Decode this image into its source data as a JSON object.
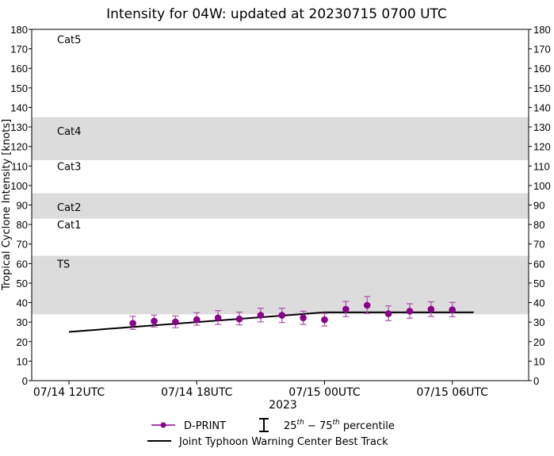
{
  "chart_data": {
    "type": "line",
    "title": "Intensity for 04W: updated at 20230715 0700 UTC",
    "xlabel": "2023",
    "ylabel": "Tropical Cyclone Intensity [knots]",
    "ylim": [
      0,
      180
    ],
    "xlim": [
      "2023-07-14T10:15",
      "2023-07-15T09:35"
    ],
    "yticks": [
      0,
      10,
      20,
      30,
      40,
      50,
      60,
      70,
      80,
      90,
      100,
      110,
      120,
      130,
      140,
      150,
      160,
      170,
      180
    ],
    "xticks": [
      {
        "t": "2023-07-14T12:00",
        "label": "07/14 12UTC"
      },
      {
        "t": "2023-07-14T18:00",
        "label": "07/14 18UTC"
      },
      {
        "t": "2023-07-15T00:00",
        "label": "07/15 00UTC"
      },
      {
        "t": "2023-07-15T06:00",
        "label": "07/15 06UTC"
      }
    ],
    "grid": false,
    "bands": [
      {
        "label": "TS",
        "from": 34,
        "to": 64,
        "shaded": true,
        "label_y": 60
      },
      {
        "label": "Cat1",
        "from": 64,
        "to": 83,
        "shaded": false,
        "label_y": 80
      },
      {
        "label": "Cat2",
        "from": 83,
        "to": 96,
        "shaded": true,
        "label_y": 89
      },
      {
        "label": "Cat3",
        "from": 96,
        "to": 113,
        "shaded": false,
        "label_y": 110
      },
      {
        "label": "Cat4",
        "from": 113,
        "to": 135,
        "shaded": true,
        "label_y": 128
      },
      {
        "label": "Cat5",
        "from": 135,
        "to": 180,
        "shaded": false,
        "label_y": 175
      }
    ],
    "band_color": "#dcdcdc",
    "series": [
      {
        "name": "D-PRINT",
        "color": "#8b008b",
        "points": [
          {
            "t": "2023-07-14T15:00",
            "y": 29.4,
            "p25": 26.3,
            "p75": 33.0
          },
          {
            "t": "2023-07-14T16:00",
            "y": 30.5,
            "p25": 27.5,
            "p75": 33.6
          },
          {
            "t": "2023-07-14T17:00",
            "y": 30.1,
            "p25": 27.1,
            "p75": 33.2
          },
          {
            "t": "2023-07-14T18:00",
            "y": 31.2,
            "p25": 28.4,
            "p75": 34.8
          },
          {
            "t": "2023-07-14T19:00",
            "y": 32.2,
            "p25": 28.8,
            "p75": 35.9
          },
          {
            "t": "2023-07-14T20:00",
            "y": 31.6,
            "p25": 28.6,
            "p75": 35.1
          },
          {
            "t": "2023-07-14T21:00",
            "y": 33.5,
            "p25": 30.1,
            "p75": 37.1
          },
          {
            "t": "2023-07-14T22:00",
            "y": 33.5,
            "p25": 29.8,
            "p75": 37.1
          },
          {
            "t": "2023-07-14T23:00",
            "y": 32.2,
            "p25": 28.8,
            "p75": 35.6
          },
          {
            "t": "2023-07-15T00:00",
            "y": 31.2,
            "p25": 28.0,
            "p75": 34.5
          },
          {
            "t": "2023-07-15T01:00",
            "y": 36.6,
            "p25": 32.8,
            "p75": 40.6
          },
          {
            "t": "2023-07-15T02:00",
            "y": 38.6,
            "p25": 34.5,
            "p75": 43.1
          },
          {
            "t": "2023-07-15T03:00",
            "y": 34.3,
            "p25": 30.8,
            "p75": 38.3
          },
          {
            "t": "2023-07-15T04:00",
            "y": 35.6,
            "p25": 32.0,
            "p75": 39.4
          },
          {
            "t": "2023-07-15T05:00",
            "y": 36.6,
            "p25": 32.9,
            "p75": 40.4
          },
          {
            "t": "2023-07-15T06:00",
            "y": 36.3,
            "p25": 32.8,
            "p75": 40.1
          }
        ]
      },
      {
        "name": "Joint Typhoon Warning Center Best Track",
        "color": "#000000",
        "points": [
          {
            "t": "2023-07-14T12:00",
            "y": 25
          },
          {
            "t": "2023-07-15T00:00",
            "y": 35
          },
          {
            "t": "2023-07-15T07:00",
            "y": 35
          }
        ]
      }
    ],
    "legend": {
      "placement": "bottom",
      "entries": [
        "D-PRINT",
        "25th – 75th percentile",
        "Joint Typhoon Warning Center Best Track"
      ],
      "percentile_base1": "25",
      "percentile_sup1": "th",
      "percentile_mid": " − 75",
      "percentile_sup2": "th",
      "percentile_tail": " percentile"
    }
  }
}
